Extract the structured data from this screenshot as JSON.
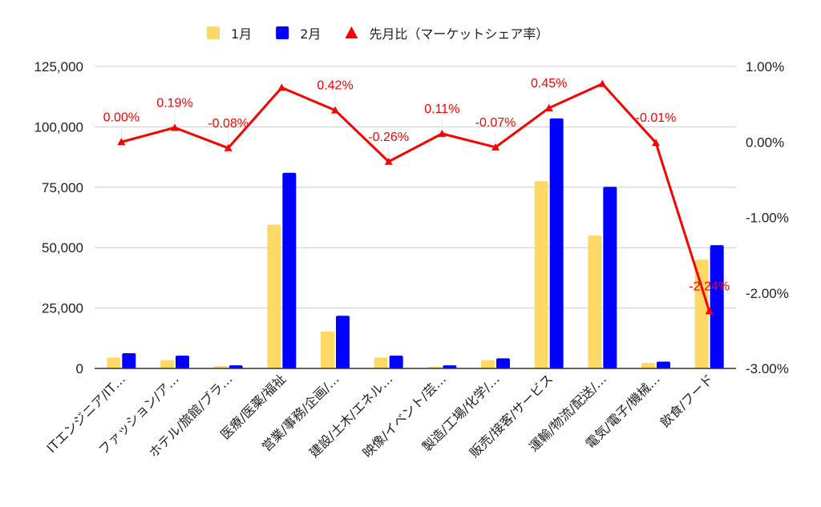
{
  "chart_data": {
    "type": "bar",
    "categories": [
      "ITエンジニア/IT…",
      "ファッション/ア…",
      "ホテル/旅館/ブラ…",
      "医療/医薬/福祉",
      "営業/事務/企画/…",
      "建設/土木/エネル…",
      "映像/イベント/芸…",
      "製造/工場/化学/…",
      "販売/接客/サービス",
      "運輸/物流/配送/…",
      "電気/電子/機械…",
      "飲食/フード"
    ],
    "series": [
      {
        "name": "1月",
        "type": "bar",
        "axis": "left",
        "color": "#ffd966",
        "values": [
          4500,
          3500,
          1000,
          59500,
          15300,
          4500,
          700,
          3500,
          77500,
          55000,
          2300,
          45000
        ]
      },
      {
        "name": "2月",
        "type": "bar",
        "axis": "left",
        "color": "#0000ff",
        "values": [
          6300,
          5300,
          1300,
          81000,
          21800,
          5300,
          1300,
          4200,
          103500,
          75200,
          2800,
          51000
        ]
      },
      {
        "name": "先月比（マーケットシェア率）",
        "type": "line",
        "axis": "right",
        "color": "#ff0000",
        "marker": "triangle",
        "values": [
          0.0,
          0.19,
          -0.08,
          0.72,
          0.42,
          -0.26,
          0.11,
          -0.07,
          0.45,
          0.77,
          -0.01,
          -2.24
        ],
        "data_labels": [
          "0.00%",
          "0.19%",
          "-0.08%",
          "",
          "0.42%",
          "-0.26%",
          "0.11%",
          "-0.07%",
          "0.45%",
          "",
          "-0.01%",
          "-2.24%"
        ]
      }
    ],
    "y_left": {
      "ylim": [
        0,
        125000
      ],
      "ticks": [
        "0",
        "25,000",
        "50,000",
        "75,000",
        "100,000",
        "125,000"
      ]
    },
    "y_right": {
      "ylim": [
        -3,
        1
      ],
      "ticks": [
        "-3.00%",
        "-2.00%",
        "-1.00%",
        "0.00%",
        "1.00%"
      ]
    },
    "grid": true,
    "legend_position": "top-center"
  }
}
